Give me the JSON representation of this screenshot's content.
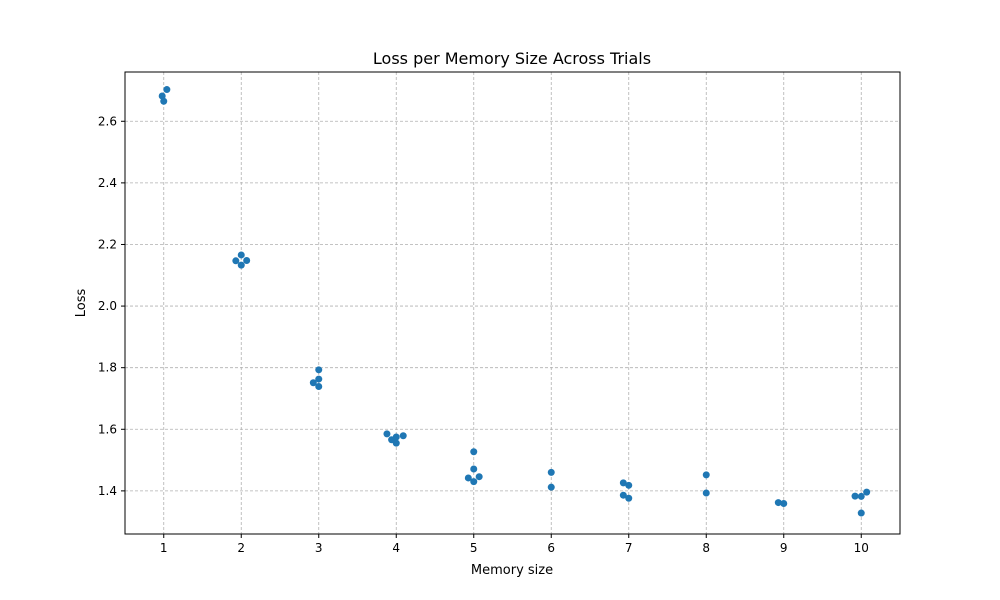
{
  "chart_data": {
    "type": "scatter",
    "title": "Loss per Memory Size Across Trials",
    "xlabel": "Memory size",
    "ylabel": "Loss",
    "xlim": [
      0.5,
      10.5
    ],
    "ylim": [
      1.26,
      2.76
    ],
    "xticks": [
      1,
      2,
      3,
      4,
      5,
      6,
      7,
      8,
      9,
      10
    ],
    "yticks": [
      1.4,
      1.6,
      1.8,
      2.0,
      2.2,
      2.4,
      2.6
    ],
    "ytick_labels": [
      "1.4",
      "1.6",
      "1.8",
      "2.0",
      "2.2",
      "2.4",
      "2.6"
    ],
    "grid": true,
    "marker_color": "#1f77b4",
    "series": [
      {
        "points": [
          {
            "x": 0.98,
            "y": 2.682
          },
          {
            "x": 1.0,
            "y": 2.665
          },
          {
            "x": 1.04,
            "y": 2.703
          },
          {
            "x": 1.93,
            "y": 2.147
          },
          {
            "x": 2.0,
            "y": 2.166
          },
          {
            "x": 2.0,
            "y": 2.133
          },
          {
            "x": 2.07,
            "y": 2.148
          },
          {
            "x": 2.93,
            "y": 1.751
          },
          {
            "x": 3.0,
            "y": 1.793
          },
          {
            "x": 3.0,
            "y": 1.763
          },
          {
            "x": 3.0,
            "y": 1.739
          },
          {
            "x": 3.88,
            "y": 1.585
          },
          {
            "x": 3.94,
            "y": 1.566
          },
          {
            "x": 4.0,
            "y": 1.575
          },
          {
            "x": 4.0,
            "y": 1.555
          },
          {
            "x": 4.09,
            "y": 1.579
          },
          {
            "x": 4.93,
            "y": 1.442
          },
          {
            "x": 5.0,
            "y": 1.527
          },
          {
            "x": 5.0,
            "y": 1.471
          },
          {
            "x": 5.0,
            "y": 1.43
          },
          {
            "x": 5.07,
            "y": 1.446
          },
          {
            "x": 6.0,
            "y": 1.46
          },
          {
            "x": 6.0,
            "y": 1.412
          },
          {
            "x": 6.93,
            "y": 1.426
          },
          {
            "x": 6.93,
            "y": 1.386
          },
          {
            "x": 7.0,
            "y": 1.418
          },
          {
            "x": 7.0,
            "y": 1.376
          },
          {
            "x": 8.0,
            "y": 1.452
          },
          {
            "x": 8.0,
            "y": 1.393
          },
          {
            "x": 8.93,
            "y": 1.362
          },
          {
            "x": 9.0,
            "y": 1.359
          },
          {
            "x": 9.92,
            "y": 1.383
          },
          {
            "x": 10.0,
            "y": 1.382
          },
          {
            "x": 10.0,
            "y": 1.328
          },
          {
            "x": 10.07,
            "y": 1.396
          }
        ]
      }
    ]
  }
}
